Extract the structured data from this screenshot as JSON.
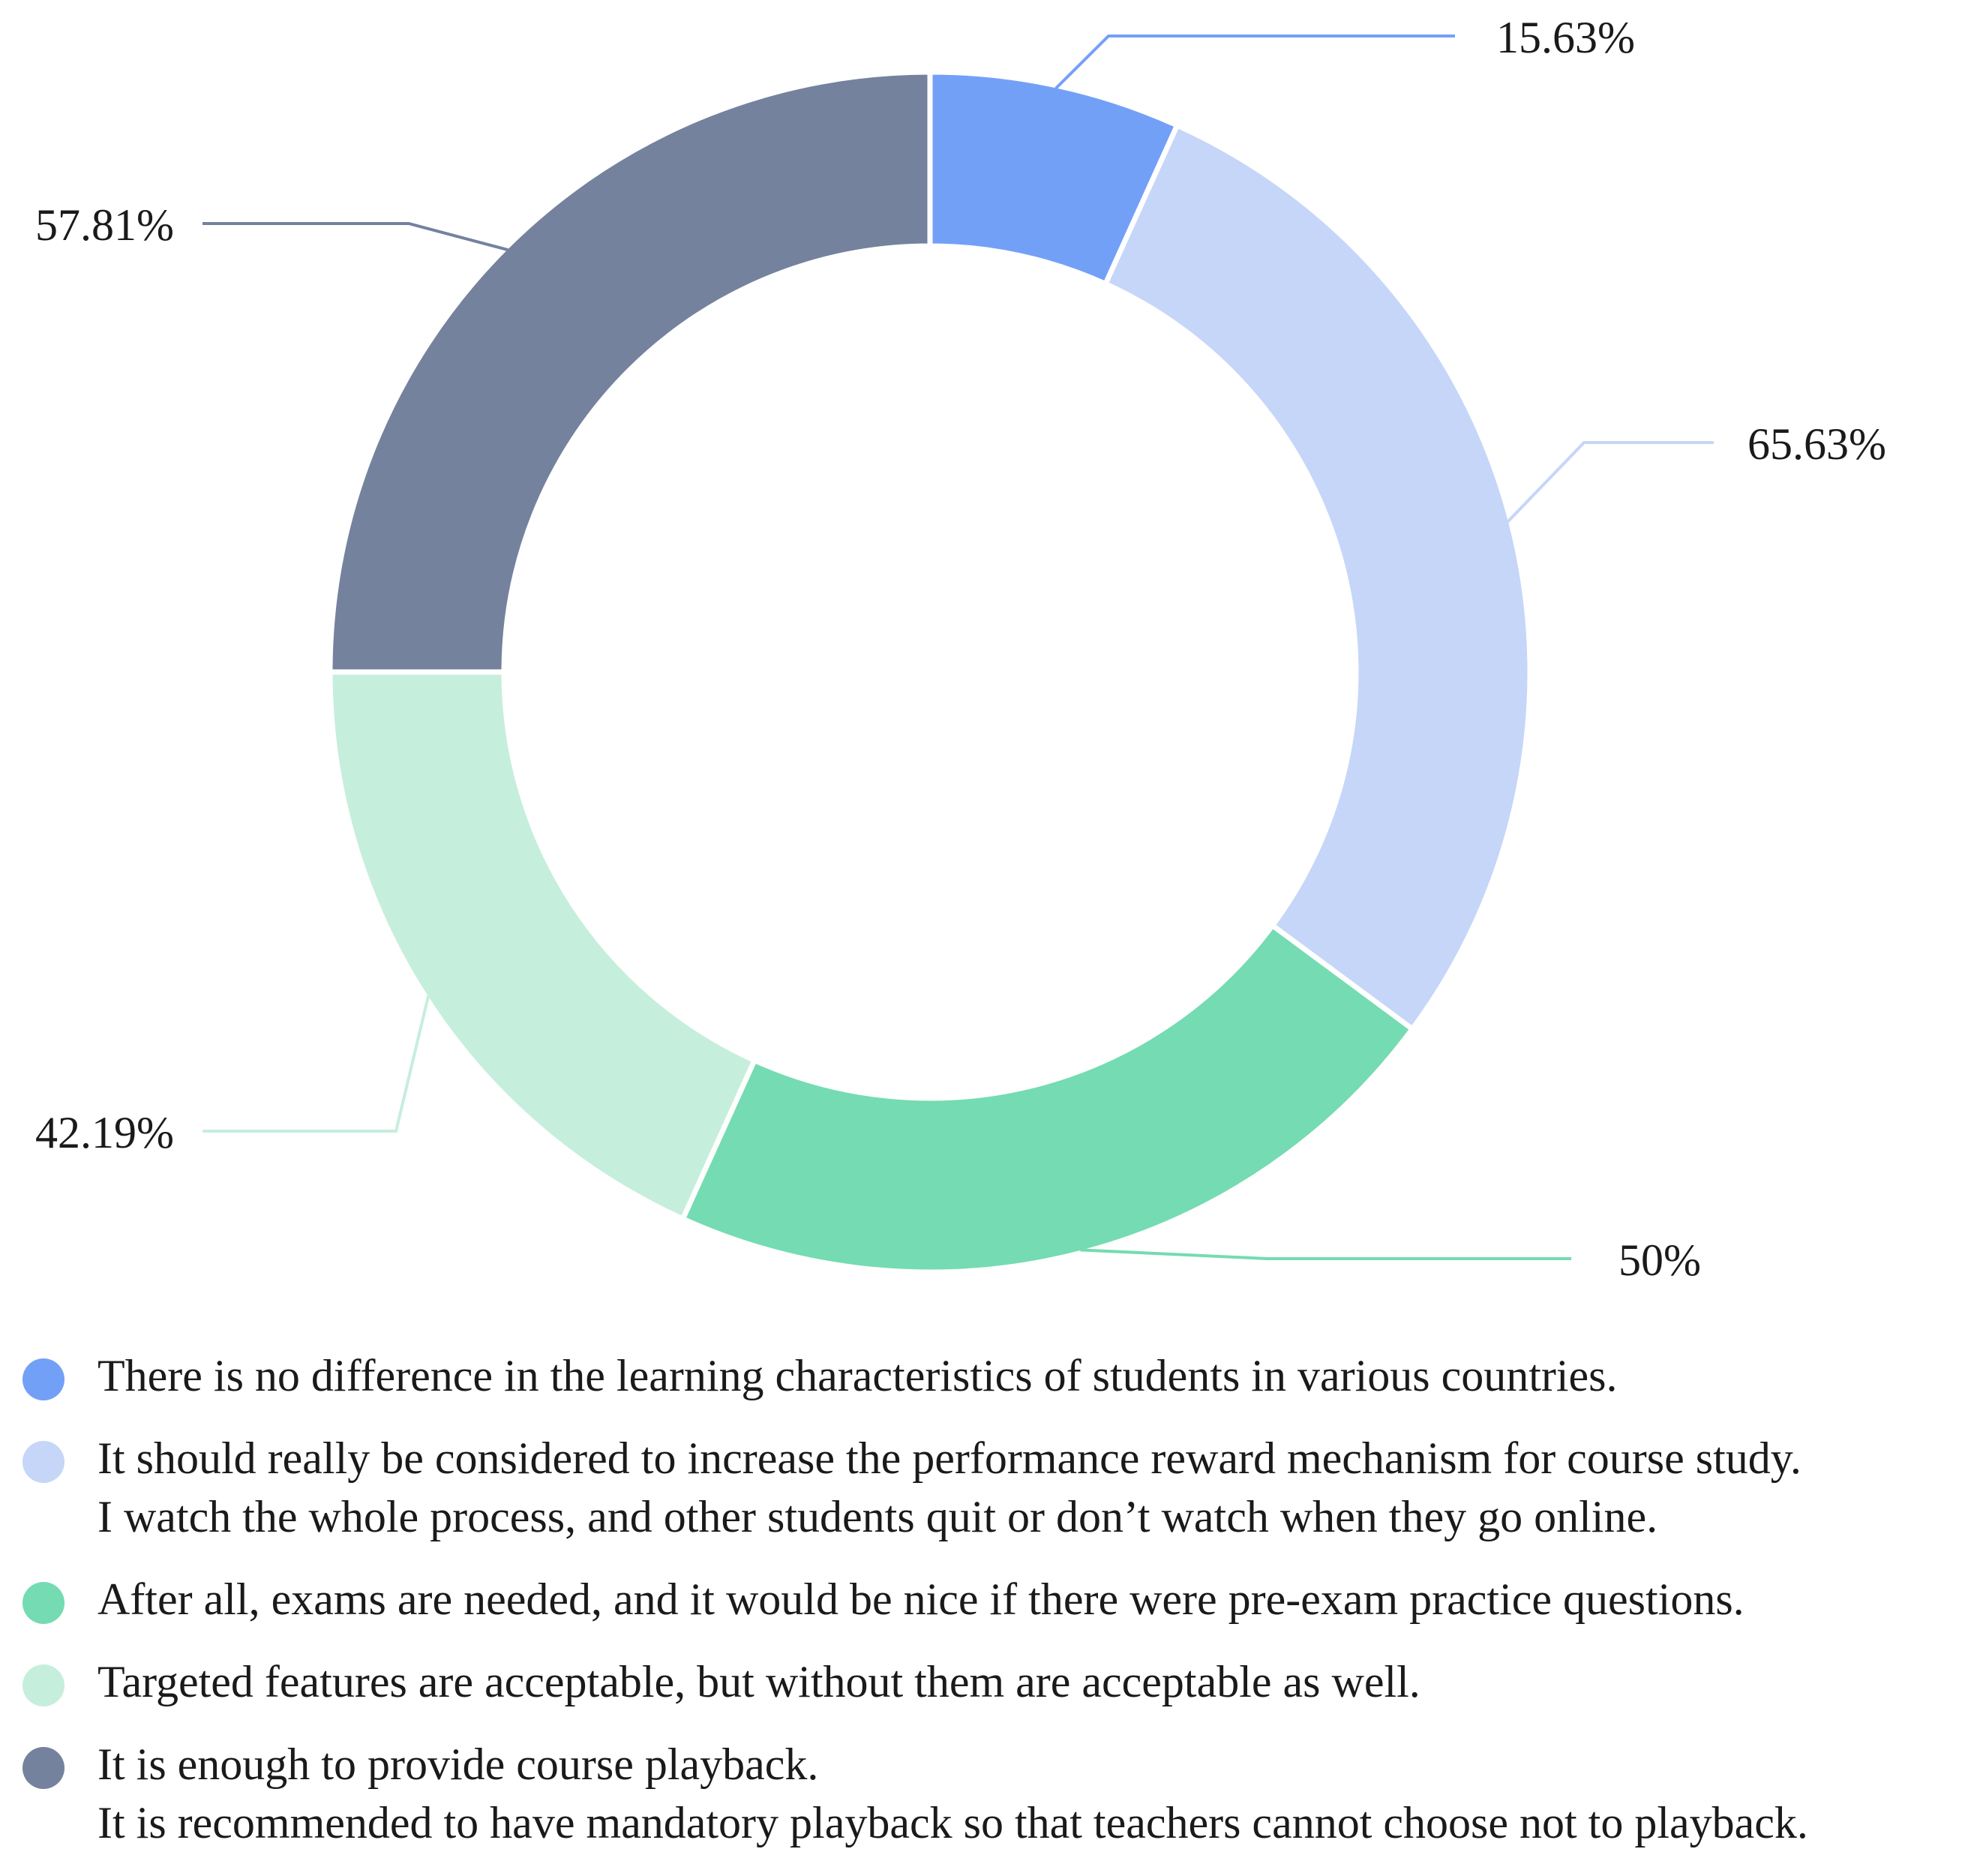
{
  "chart_data": {
    "type": "pie",
    "variant": "donut",
    "title": "",
    "slices": [
      {
        "label": "There is no difference in the learning characteristics of students in various countries.",
        "value": 15.63,
        "display": "15.63%",
        "color": "#73a0f7"
      },
      {
        "label": "It should really be considered to increase the performance reward mechanism for course study.\nI watch the whole process, and other students quit or don’t watch when they go online.",
        "value": 65.63,
        "display": "65.63%",
        "color": "#c5d6f8"
      },
      {
        "label": "After all, exams are needed, and it would be nice if there were pre-exam practice questions.",
        "value": 50,
        "display": "50%",
        "color": "#74dbb2"
      },
      {
        "label": "Targeted features are acceptable, but without them are acceptable as well.",
        "value": 42.19,
        "display": "42.19%",
        "color": "#c6eedd"
      },
      {
        "label": "It is enough to provide course playback.\nIt is recommended to have mandatory playback so that teachers cannot choose not to playback.",
        "value": 57.81,
        "display": "57.81%",
        "color": "#74829e"
      }
    ],
    "legend_position": "bottom-left"
  }
}
